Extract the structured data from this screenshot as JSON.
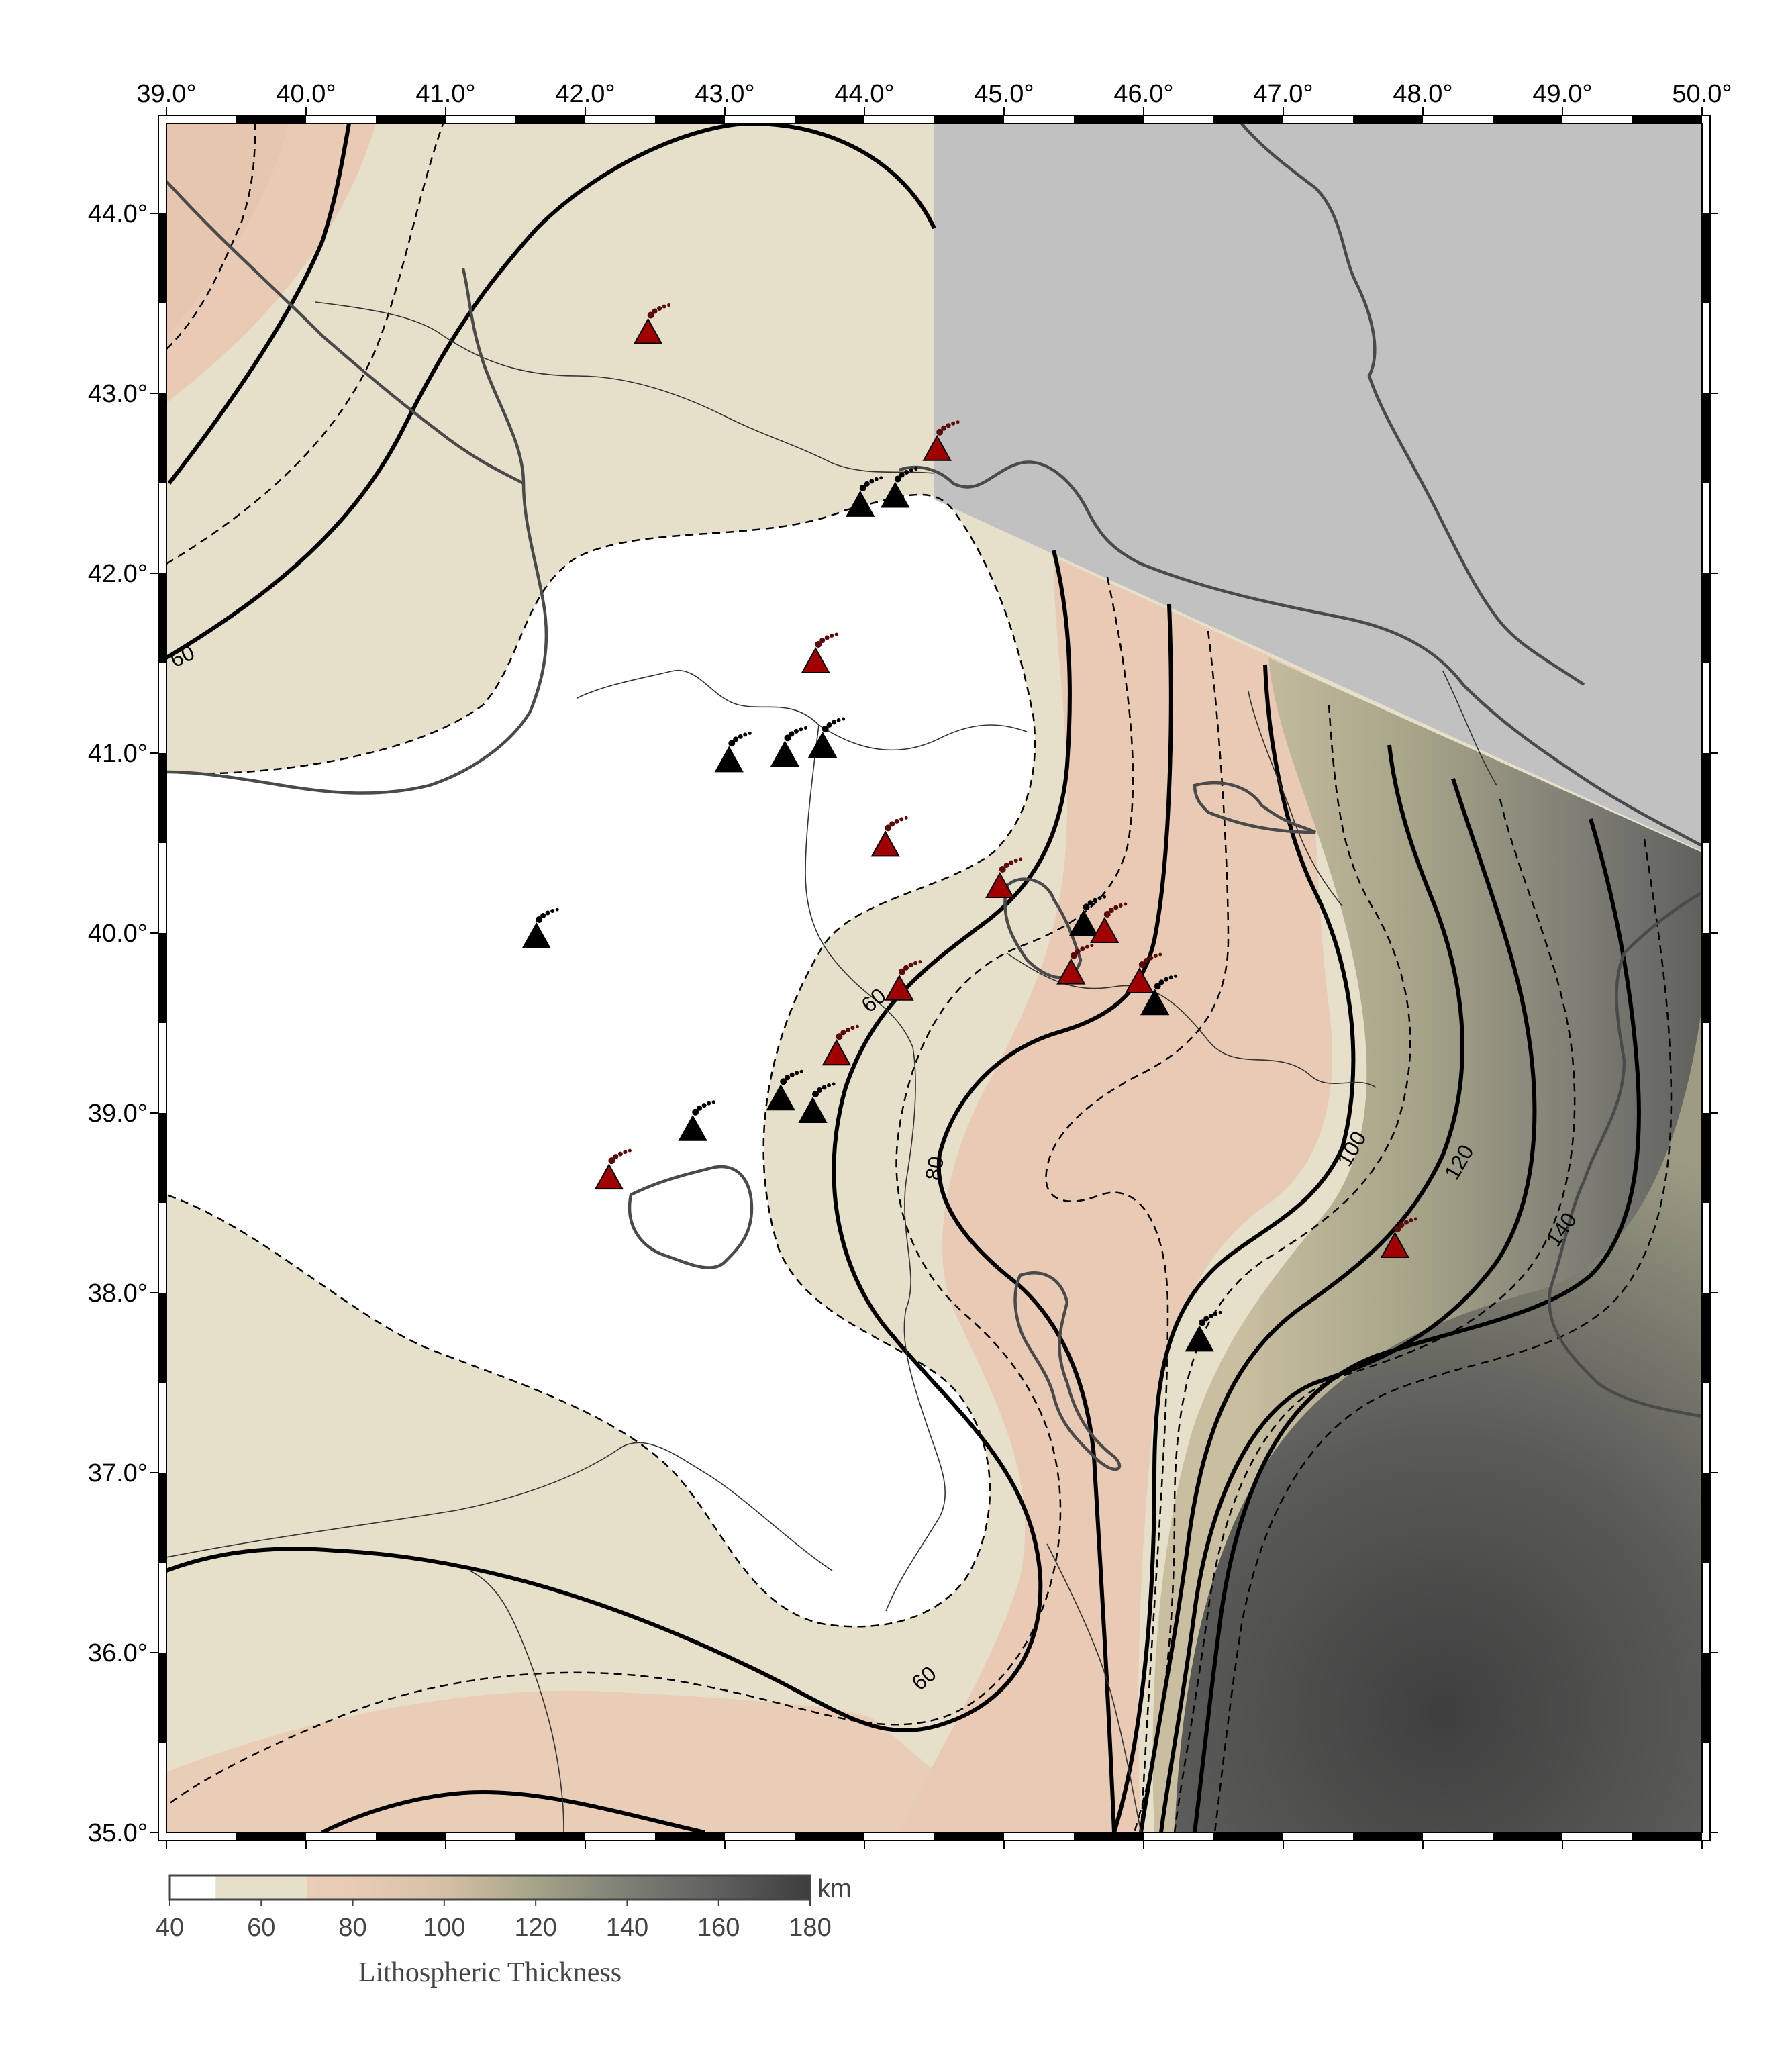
{
  "map": {
    "lon_range": [
      39.0,
      50.0
    ],
    "lat_range": [
      35.0,
      44.5
    ],
    "lon_ticks": [
      "39.0°",
      "40.0°",
      "41.0°",
      "42.0°",
      "43.0°",
      "44.0°",
      "45.0°",
      "46.0°",
      "47.0°",
      "48.0°",
      "49.0°",
      "50.0°"
    ],
    "lat_ticks": [
      "35.0°",
      "36.0°",
      "37.0°",
      "38.0°",
      "39.0°",
      "40.0°",
      "41.0°",
      "42.0°",
      "43.0°",
      "44.0°"
    ],
    "contour_labels": [
      "60",
      "60",
      "60",
      "80",
      "100",
      "120",
      "140"
    ],
    "colors": {
      "no_data": "#c1c1c1",
      "thin_white": "#ffffff",
      "beige": "#e6e0cb",
      "peach": "#e9cbb5",
      "olive": "#9e9e80",
      "dark": "#4a4a4a",
      "volcano_red": "#a00000",
      "volcano_black": "#000000"
    }
  },
  "volcanoes": [
    {
      "lon": 42.45,
      "lat": 43.33,
      "type": "red"
    },
    {
      "lon": 44.52,
      "lat": 42.68,
      "type": "red"
    },
    {
      "lon": 43.97,
      "lat": 42.37,
      "type": "black"
    },
    {
      "lon": 44.22,
      "lat": 42.42,
      "type": "black"
    },
    {
      "lon": 43.65,
      "lat": 41.5,
      "type": "red"
    },
    {
      "lon": 43.03,
      "lat": 40.95,
      "type": "black"
    },
    {
      "lon": 43.43,
      "lat": 40.98,
      "type": "black"
    },
    {
      "lon": 43.7,
      "lat": 41.03,
      "type": "black"
    },
    {
      "lon": 44.15,
      "lat": 40.48,
      "type": "red"
    },
    {
      "lon": 44.97,
      "lat": 40.25,
      "type": "red"
    },
    {
      "lon": 41.65,
      "lat": 39.97,
      "type": "black"
    },
    {
      "lon": 45.57,
      "lat": 40.04,
      "type": "black"
    },
    {
      "lon": 45.72,
      "lat": 40.0,
      "type": "red"
    },
    {
      "lon": 45.48,
      "lat": 39.77,
      "type": "red"
    },
    {
      "lon": 44.25,
      "lat": 39.68,
      "type": "red"
    },
    {
      "lon": 45.97,
      "lat": 39.72,
      "type": "red"
    },
    {
      "lon": 46.08,
      "lat": 39.6,
      "type": "black"
    },
    {
      "lon": 43.8,
      "lat": 39.32,
      "type": "red"
    },
    {
      "lon": 43.4,
      "lat": 39.07,
      "type": "black"
    },
    {
      "lon": 43.63,
      "lat": 39.0,
      "type": "black"
    },
    {
      "lon": 42.77,
      "lat": 38.9,
      "type": "black"
    },
    {
      "lon": 42.17,
      "lat": 38.63,
      "type": "red"
    },
    {
      "lon": 47.8,
      "lat": 38.25,
      "type": "red"
    },
    {
      "lon": 46.4,
      "lat": 37.73,
      "type": "black"
    }
  ],
  "colorbar": {
    "ticks": [
      "40",
      "60",
      "80",
      "100",
      "120",
      "140",
      "160",
      "180"
    ],
    "unit": "km",
    "title": "Lithospheric Thickness",
    "range": [
      40,
      180
    ]
  }
}
